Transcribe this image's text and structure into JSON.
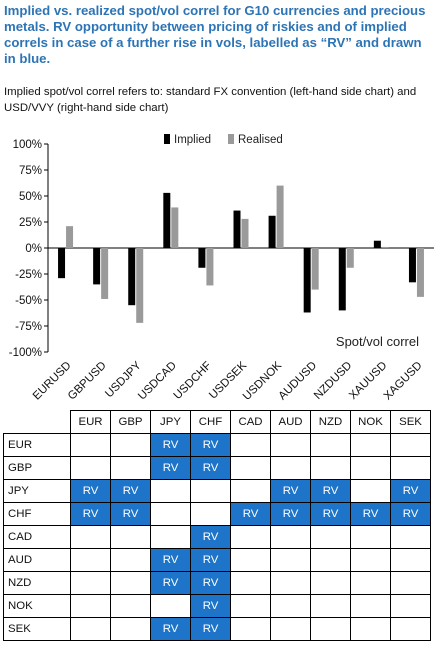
{
  "header": {
    "title": "Implied vs. realized spot/vol correl for G10 currencies and precious metals. RV opportunity between pricing of riskies and of implied correls in case of a further rise in vols, labelled as “RV” and drawn in blue.",
    "subtitle": "Implied spot/vol correl refers to: standard FX convention (left-hand side chart) and USD/VVY (right-hand side chart)"
  },
  "colors": {
    "implied": "#000000",
    "realised": "#9a9a9a",
    "rv_cell": "#1d74c8",
    "title": "#2d74b5"
  },
  "chart_data": {
    "type": "bar",
    "title": "",
    "xlabel": "",
    "ylabel": "",
    "annotation": "Spot/vol correl",
    "legend_position": "top-right",
    "grid": false,
    "ylim": [
      -1.0,
      1.0
    ],
    "yticks": [
      1.0,
      0.75,
      0.5,
      0.25,
      0.0,
      -0.25,
      -0.5,
      -0.75,
      -1.0
    ],
    "ytick_labels": [
      "100%",
      "75%",
      "50%",
      "25%",
      "0%",
      "-25%",
      "-50%",
      "-75%",
      "-100%"
    ],
    "categories": [
      "EURUSD",
      "GBPUSD",
      "USDJPY",
      "USDCAD",
      "USDCHF",
      "USDSEK",
      "USDNOK",
      "AUDUSD",
      "NZDUSD",
      "XAUUSD",
      "XAGUSD"
    ],
    "series": [
      {
        "name": "Implied",
        "values": [
          -0.29,
          -0.35,
          -0.55,
          0.53,
          -0.19,
          0.36,
          0.31,
          -0.62,
          -0.6,
          0.07,
          -0.33
        ]
      },
      {
        "name": "Realised",
        "values": [
          0.21,
          -0.49,
          -0.72,
          0.39,
          -0.36,
          0.28,
          0.6,
          -0.4,
          -0.19,
          0.01,
          -0.47
        ]
      }
    ]
  },
  "rv_matrix": {
    "columns": [
      "EUR",
      "GBP",
      "JPY",
      "CHF",
      "CAD",
      "AUD",
      "NZD",
      "NOK",
      "SEK"
    ],
    "rv_label": "RV",
    "rows": [
      {
        "label": "EUR",
        "cells": [
          0,
          0,
          1,
          1,
          0,
          0,
          0,
          0,
          0
        ]
      },
      {
        "label": "GBP",
        "cells": [
          0,
          0,
          1,
          1,
          0,
          0,
          0,
          0,
          0
        ]
      },
      {
        "label": "JPY",
        "cells": [
          1,
          1,
          0,
          0,
          0,
          1,
          1,
          0,
          1
        ]
      },
      {
        "label": "CHF",
        "cells": [
          1,
          1,
          0,
          0,
          1,
          1,
          1,
          1,
          1
        ]
      },
      {
        "label": "CAD",
        "cells": [
          0,
          0,
          0,
          1,
          0,
          0,
          0,
          0,
          0
        ]
      },
      {
        "label": "AUD",
        "cells": [
          0,
          0,
          1,
          1,
          0,
          0,
          0,
          0,
          0
        ]
      },
      {
        "label": "NZD",
        "cells": [
          0,
          0,
          1,
          1,
          0,
          0,
          0,
          0,
          0
        ]
      },
      {
        "label": "NOK",
        "cells": [
          0,
          0,
          0,
          1,
          0,
          0,
          0,
          0,
          0
        ]
      },
      {
        "label": "SEK",
        "cells": [
          0,
          0,
          1,
          1,
          0,
          0,
          0,
          0,
          0
        ]
      }
    ]
  }
}
